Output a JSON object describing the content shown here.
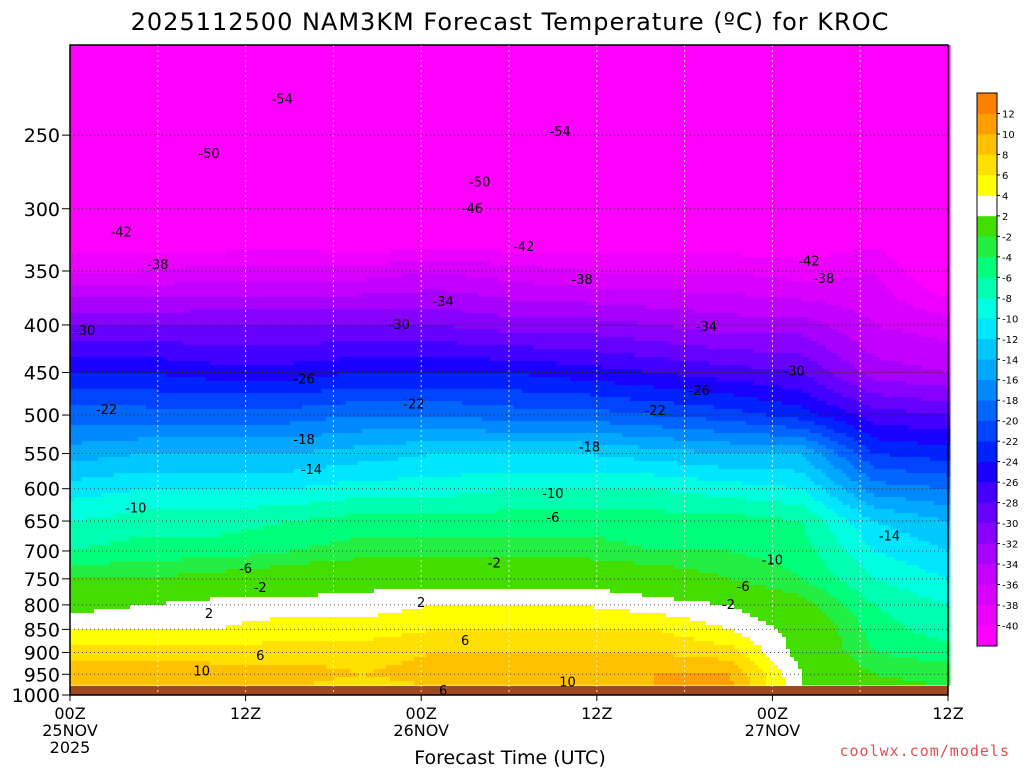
{
  "chart_data": {
    "type": "heatmap",
    "title": "2025112500 NAM3KM Forecast Temperature (ºC) for KROC",
    "xlabel": "Forecast Time (UTC)",
    "ylabel": "",
    "x_unit": "forecast hours",
    "x_range": [
      0,
      60
    ],
    "x_ticks": [
      {
        "hour": 0,
        "lines": [
          "00Z",
          "25NOV",
          "2025"
        ]
      },
      {
        "hour": 12,
        "lines": [
          "12Z"
        ]
      },
      {
        "hour": 24,
        "lines": [
          "00Z",
          "26NOV"
        ]
      },
      {
        "hour": 36,
        "lines": [
          "12Z"
        ]
      },
      {
        "hour": 48,
        "lines": [
          "00Z",
          "27NOV"
        ]
      },
      {
        "hour": 60,
        "lines": [
          "12Z"
        ]
      }
    ],
    "y_unit": "hPa",
    "y_range": [
      1000,
      200
    ],
    "y_ticks": [
      250,
      300,
      350,
      400,
      450,
      500,
      550,
      600,
      650,
      700,
      750,
      800,
      850,
      900,
      950,
      1000
    ],
    "ground_pressure": 978,
    "colorbar": {
      "bounds": [
        -42,
        -40,
        -38,
        -36,
        -34,
        -32,
        -30,
        -28,
        -26,
        -24,
        -22,
        -20,
        -18,
        -16,
        -14,
        -12,
        -10,
        -8,
        -6,
        -4,
        -2,
        2,
        4,
        6,
        8,
        10,
        12,
        14
      ],
      "colors": [
        "#ff00ff",
        "#ec00ff",
        "#d900ff",
        "#c300ff",
        "#a800ff",
        "#8800ff",
        "#6600ff",
        "#4400ff",
        "#1a00ff",
        "#0022ff",
        "#0044ff",
        "#0066ff",
        "#0088ff",
        "#00a8ff",
        "#00c8ff",
        "#00e6ff",
        "#00ffe0",
        "#00ffb0",
        "#00ff7a",
        "#22ee44",
        "#44dd00",
        "#ffffff",
        "#ffff00",
        "#ffe000",
        "#ffc000",
        "#ffa000",
        "#ff8000"
      ],
      "labels": [
        "-40",
        "-38",
        "-36",
        "-34",
        "-32",
        "-30",
        "-28",
        "-26",
        "-24",
        "-22",
        "-20",
        "-18",
        "-16",
        "-14",
        "-12",
        "-10",
        "-8",
        "-6",
        "-4",
        "-2",
        "2",
        "4",
        "6",
        "8",
        "10",
        "12"
      ]
    },
    "temperature_rows": [
      {
        "p": 200,
        "t": [
          -58,
          -58,
          -59,
          -58,
          -59,
          -59,
          -59,
          -60,
          -59,
          -58,
          -58,
          -58,
          -58
        ]
      },
      {
        "p": 250,
        "t": [
          -54,
          -54,
          -55,
          -55,
          -55,
          -54,
          -54,
          -55,
          -55,
          -53,
          -52,
          -52,
          -53
        ]
      },
      {
        "p": 300,
        "t": [
          -45,
          -45,
          -46,
          -45,
          -47,
          -46,
          -46,
          -45,
          -44,
          -45,
          -44,
          -43,
          -43
        ]
      },
      {
        "p": 350,
        "t": [
          -38,
          -38,
          -37,
          -37,
          -37,
          -36,
          -37,
          -38,
          -38,
          -38,
          -39,
          -38,
          -43
        ]
      },
      {
        "p": 400,
        "t": [
          -30,
          -30,
          -30,
          -30,
          -30,
          -30,
          -31,
          -31,
          -32,
          -33,
          -33,
          -36,
          -37
        ]
      },
      {
        "p": 450,
        "t": [
          -24,
          -24,
          -25,
          -25,
          -24,
          -24,
          -24,
          -25,
          -26,
          -27,
          -28,
          -33,
          -34
        ]
      },
      {
        "p": 500,
        "t": [
          -19,
          -19,
          -19,
          -19,
          -18,
          -18,
          -19,
          -19,
          -20,
          -21,
          -23,
          -27,
          -28
        ]
      },
      {
        "p": 550,
        "t": [
          -15,
          -14,
          -14,
          -14,
          -13,
          -12,
          -12,
          -12,
          -13,
          -14,
          -14,
          -22,
          -23
        ]
      },
      {
        "p": 600,
        "t": [
          -11,
          -10,
          -10,
          -10,
          -9,
          -9,
          -8,
          -8,
          -8,
          -9,
          -10,
          -17,
          -18
        ]
      },
      {
        "p": 650,
        "t": [
          -8,
          -7,
          -7,
          -6,
          -5,
          -5,
          -5,
          -5,
          -5,
          -5,
          -6,
          -12,
          -14
        ]
      },
      {
        "p": 700,
        "t": [
          -6,
          -5,
          -5,
          -4,
          -3,
          -3,
          -3,
          -3,
          -4,
          -4,
          -5,
          -10,
          -12
        ]
      },
      {
        "p": 750,
        "t": [
          -2,
          -2,
          -1,
          0,
          1,
          1,
          1,
          1,
          0,
          -2,
          -4,
          -8,
          -10
        ]
      },
      {
        "p": 800,
        "t": [
          1,
          2,
          3,
          3,
          3,
          4,
          4,
          4,
          3,
          2,
          -1,
          -6,
          -8
        ]
      },
      {
        "p": 850,
        "t": [
          4,
          4,
          4,
          5,
          5,
          6,
          6,
          6,
          6,
          4,
          1,
          -5,
          -7
        ]
      },
      {
        "p": 900,
        "t": [
          7,
          7,
          7,
          7,
          7,
          8,
          8,
          8,
          8,
          7,
          1,
          -4,
          -5
        ]
      },
      {
        "p": 950,
        "t": [
          10,
          10,
          9,
          9,
          8,
          9,
          10,
          10,
          10,
          10,
          2,
          -2,
          -3
        ]
      },
      {
        "p": 980,
        "t": [
          9,
          9,
          8,
          8,
          7,
          8,
          9,
          9,
          10,
          11,
          2,
          -1,
          -2
        ]
      }
    ],
    "contour_labels": [
      {
        "hour": 14.5,
        "p": 229,
        "text": "-54"
      },
      {
        "hour": 33.5,
        "p": 248,
        "text": "-54"
      },
      {
        "hour": 9.5,
        "p": 262,
        "text": "-50"
      },
      {
        "hour": 28.0,
        "p": 281,
        "text": "-50"
      },
      {
        "hour": 27.5,
        "p": 300,
        "text": "-46"
      },
      {
        "hour": 3.5,
        "p": 318,
        "text": "-42"
      },
      {
        "hour": 31.0,
        "p": 330,
        "text": "-42"
      },
      {
        "hour": 50.5,
        "p": 342,
        "text": "-42"
      },
      {
        "hour": 6.0,
        "p": 345,
        "text": "-38"
      },
      {
        "hour": 35.0,
        "p": 358,
        "text": "-38"
      },
      {
        "hour": 51.5,
        "p": 357,
        "text": "-38"
      },
      {
        "hour": 25.5,
        "p": 378,
        "text": "-34"
      },
      {
        "hour": 43.5,
        "p": 402,
        "text": "-34"
      },
      {
        "hour": 1.0,
        "p": 406,
        "text": "-30"
      },
      {
        "hour": 22.5,
        "p": 400,
        "text": "-30"
      },
      {
        "hour": 49.5,
        "p": 449,
        "text": "-30"
      },
      {
        "hour": 16.0,
        "p": 458,
        "text": "-26"
      },
      {
        "hour": 43.0,
        "p": 471,
        "text": "-26"
      },
      {
        "hour": 2.5,
        "p": 494,
        "text": "-22"
      },
      {
        "hour": 23.5,
        "p": 487,
        "text": "-22"
      },
      {
        "hour": 40.0,
        "p": 495,
        "text": "-22"
      },
      {
        "hour": 16.0,
        "p": 532,
        "text": "-18"
      },
      {
        "hour": 35.5,
        "p": 542,
        "text": "-18"
      },
      {
        "hour": 16.5,
        "p": 573,
        "text": "-14"
      },
      {
        "hour": 56.0,
        "p": 675,
        "text": "-14"
      },
      {
        "hour": 4.5,
        "p": 630,
        "text": "-10"
      },
      {
        "hour": 33.0,
        "p": 608,
        "text": "-10"
      },
      {
        "hour": 48.0,
        "p": 717,
        "text": "-10"
      },
      {
        "hour": 33.0,
        "p": 645,
        "text": "-6"
      },
      {
        "hour": 12.0,
        "p": 732,
        "text": "-6"
      },
      {
        "hour": 46.0,
        "p": 765,
        "text": "-6"
      },
      {
        "hour": 13.0,
        "p": 767,
        "text": "-2"
      },
      {
        "hour": 29.0,
        "p": 722,
        "text": "-2"
      },
      {
        "hour": 45.0,
        "p": 800,
        "text": "-2"
      },
      {
        "hour": 9.5,
        "p": 818,
        "text": "2"
      },
      {
        "hour": 24.0,
        "p": 796,
        "text": "2"
      },
      {
        "hour": 13.0,
        "p": 908,
        "text": "6"
      },
      {
        "hour": 27.0,
        "p": 875,
        "text": "6"
      },
      {
        "hour": 25.5,
        "p": 990,
        "text": "6"
      },
      {
        "hour": 9.0,
        "p": 943,
        "text": "10"
      },
      {
        "hour": 34.0,
        "p": 969,
        "text": "10"
      }
    ],
    "credit": "coolwx.com/models"
  }
}
